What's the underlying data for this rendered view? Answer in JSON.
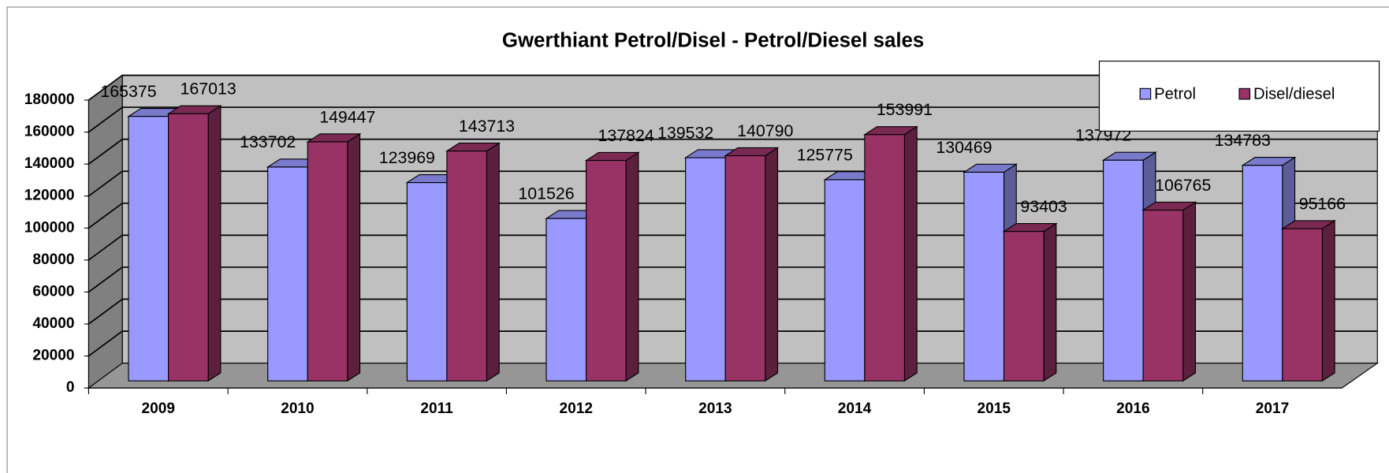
{
  "chart_data": {
    "type": "bar3d",
    "title": "Gwerthiant Petrol/Disel  -  Petrol/Diesel sales",
    "categories": [
      "2009",
      "2010",
      "2011",
      "2012",
      "2013",
      "2014",
      "2015",
      "2016",
      "2017"
    ],
    "series": [
      {
        "name": "Petrol",
        "color": "#9999ff",
        "values": [
          165375,
          133702,
          123969,
          101526,
          139532,
          125775,
          130469,
          137972,
          134783
        ]
      },
      {
        "name": "Disel/diesel",
        "color": "#993366",
        "values": [
          167013,
          149447,
          143713,
          137824,
          140790,
          153991,
          93403,
          106765,
          95166
        ]
      }
    ],
    "ylim": [
      0,
      180000
    ],
    "yticks": [
      0,
      20000,
      40000,
      60000,
      80000,
      100000,
      120000,
      140000,
      160000,
      180000
    ],
    "grid": true,
    "legend": "top-right"
  }
}
